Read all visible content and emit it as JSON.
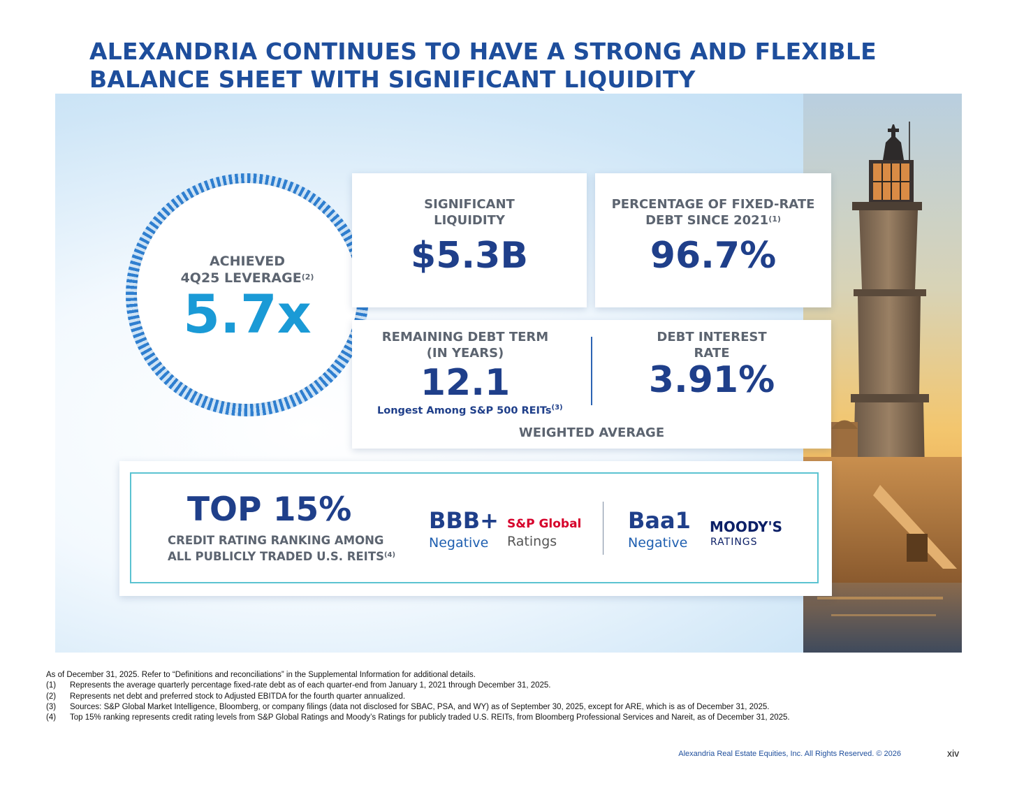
{
  "title": {
    "line1": "ALEXANDRIA CONTINUES TO HAVE A STRONG AND FLEXIBLE",
    "line2": "BALANCE SHEET WITH SIGNIFICANT LIQUIDITY"
  },
  "leverage": {
    "label_line1": "ACHIEVED",
    "label_line2": "4Q25 LEVERAGE",
    "footnote_ref": "(2)",
    "value": "5.7x"
  },
  "liquidity": {
    "label_line1": "SIGNIFICANT",
    "label_line2": "LIQUIDITY",
    "value": "$5.3B"
  },
  "fixed_rate": {
    "label_line1": "PERCENTAGE OF FIXED-RATE",
    "label_line2": "DEBT SINCE 2021",
    "footnote_ref": "(1)",
    "value": "96.7%"
  },
  "debt_term": {
    "label_line1": "REMAINING DEBT TERM",
    "label_line2": "(IN YEARS)",
    "value": "12.1",
    "note": "Longest Among S&P 500 REITs",
    "note_ref": "(3)"
  },
  "interest": {
    "label_line1": "DEBT INTEREST",
    "label_line2": "RATE",
    "value": "3.91%"
  },
  "weighted_average": "WEIGHTED AVERAGE",
  "ranking": {
    "value": "TOP 15%",
    "desc_line1": "CREDIT RATING RANKING AMONG",
    "desc_line2": "ALL PUBLICLY TRADED U.S. REITS",
    "footnote_ref": "(4)"
  },
  "sp": {
    "rating": "BBB+",
    "outlook": "Negative",
    "brand": "S&P Global",
    "brand_sub": "Ratings",
    "brand_color": "#d6002a"
  },
  "moodys": {
    "rating": "Baa1",
    "outlook": "Negative",
    "brand": "MOODY'S",
    "brand_sub": "RATINGS"
  },
  "footnotes": {
    "intro": "As of December 31, 2025. Refer to “Definitions and reconciliations” in the Supplemental Information for additional details.",
    "items": [
      {
        "num": "(1)",
        "text": "Represents the average quarterly percentage fixed-rate debt as of each quarter-end from January 1, 2021 through December 31, 2025."
      },
      {
        "num": "(2)",
        "text": "Represents net debt and preferred stock to Adjusted EBITDA for the fourth quarter annualized."
      },
      {
        "num": "(3)",
        "text": "Sources: S&P Global Market Intelligence, Bloomberg, or company filings (data not disclosed for SBAC, PSA, and WY) as of September 30, 2025, except for ARE, which is as of December 31, 2025."
      },
      {
        "num": "(4)",
        "text": "Top 15% ranking represents credit rating levels from S&P Global Ratings and Moody’s Ratings for publicly traded U.S. REITs, from Bloomberg Professional Services and Nareit, as of December 31, 2025."
      }
    ]
  },
  "footer": {
    "copyright": "Alexandria Real Estate Equities, Inc. All Rights Reserved. © 2026",
    "page": "xiv"
  },
  "colors": {
    "title": "#1e4e9c",
    "value_navy": "#1f3f8a",
    "value_cyan": "#1a9ad6",
    "label_gray": "#5c6470",
    "box_border": "#5bc3d1"
  }
}
